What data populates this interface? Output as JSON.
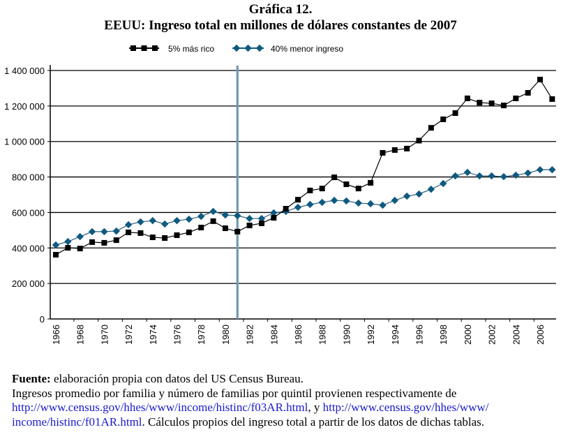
{
  "header": {
    "title_line1": "Gráfica 12.",
    "title_line2": "EEUU: Ingreso total en millones de dólares constantes de 2007"
  },
  "chart_data": {
    "type": "line",
    "title": "EEUU: Ingreso total en millones de dólares constantes de 2007",
    "xlabel": "",
    "ylabel": "",
    "ylim": [
      0,
      1400000
    ],
    "yticks": [
      0,
      200000,
      400000,
      600000,
      800000,
      1000000,
      1200000,
      1400000
    ],
    "ytick_labels": [
      "0",
      "200 000",
      "400 000",
      "600 000",
      "800 000",
      "1 000 000",
      "1 200 000",
      "1 400 000"
    ],
    "xtick_labels": [
      "1966",
      "1968",
      "1970",
      "1972",
      "1974",
      "1976",
      "1978",
      "1980",
      "1982",
      "1984",
      "1986",
      "1988",
      "1990",
      "1992",
      "1994",
      "1996",
      "1998",
      "2000",
      "2002",
      "2004",
      "2006"
    ],
    "grid": "horizontal",
    "legend_position": "top-center",
    "annotation_vertical_line_year": 1981,
    "x": [
      1966,
      1967,
      1968,
      1969,
      1970,
      1971,
      1972,
      1973,
      1974,
      1975,
      1976,
      1977,
      1978,
      1979,
      1980,
      1981,
      1982,
      1983,
      1984,
      1985,
      1986,
      1987,
      1988,
      1989,
      1990,
      1991,
      1992,
      1993,
      1994,
      1995,
      1996,
      1997,
      1998,
      1999,
      2000,
      2001,
      2002,
      2003,
      2004,
      2005,
      2006,
      2007
    ],
    "series": [
      {
        "name": "5% más rico",
        "color": "#000000",
        "marker": "square",
        "values": [
          362000,
          401000,
          397000,
          433000,
          429000,
          444000,
          488000,
          484000,
          460000,
          456000,
          472000,
          488000,
          515000,
          551000,
          511000,
          492000,
          527000,
          539000,
          570000,
          621000,
          672000,
          724000,
          735000,
          798000,
          759000,
          735000,
          767000,
          936000,
          952000,
          960000,
          1005000,
          1077000,
          1125000,
          1160000,
          1243000,
          1219000,
          1215000,
          1203000,
          1243000,
          1274000,
          1349000,
          1239000
        ]
      },
      {
        "name": "40% menor ingreso",
        "color": "#0e5a80",
        "marker": "diamond",
        "values": [
          417000,
          436000,
          464000,
          492000,
          492000,
          495000,
          531000,
          547000,
          554000,
          535000,
          554000,
          562000,
          578000,
          606000,
          586000,
          582000,
          566000,
          566000,
          598000,
          606000,
          629000,
          645000,
          657000,
          668000,
          665000,
          653000,
          649000,
          641000,
          668000,
          692000,
          704000,
          731000,
          763000,
          806000,
          826000,
          806000,
          806000,
          802000,
          810000,
          822000,
          841000,
          841000
        ]
      }
    ],
    "vline_color": "#6f9ab4"
  },
  "notes": {
    "source_label": "Fuente:",
    "source_text": " elaboración propia con datos del US Census Bureau.",
    "line2": "Ingresos promedio por familia y número de familias por quintil provienen respectivamente de",
    "link1": "http://www.census.gov/hhes/www/income/histinc/f03AR.html",
    "between_links": ", y ",
    "link2_part1": "http://www.census.gov/hhes/www/",
    "link2_part2": "income/histinc/f01AR.html",
    "after_link2": ". Cálculos propios del ingreso total a partir de los datos de dichas tablas."
  }
}
